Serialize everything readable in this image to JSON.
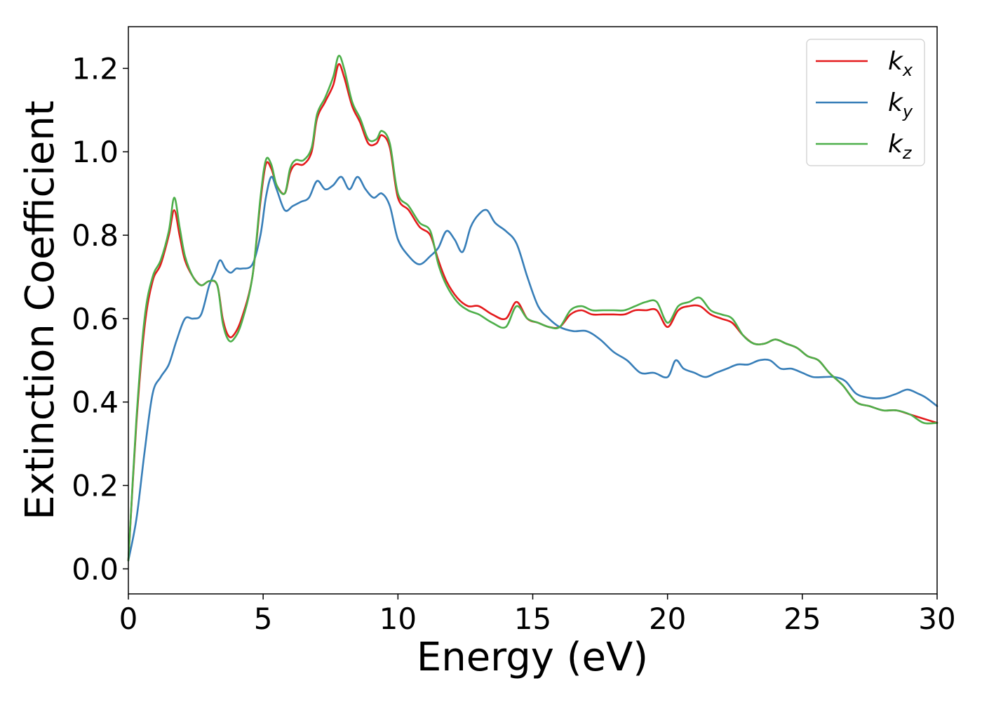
{
  "chart_data": {
    "type": "line",
    "xlabel": "Energy (eV)",
    "ylabel": "Extinction Coefficient",
    "xlim": [
      0,
      30
    ],
    "ylim": [
      -0.06,
      1.3
    ],
    "xticks": [
      "0",
      "5",
      "10",
      "15",
      "20",
      "25",
      "30"
    ],
    "yticks": [
      "0.0",
      "0.2",
      "0.4",
      "0.6",
      "0.8",
      "1.0",
      "1.2"
    ],
    "grid": false,
    "legend_position": "upper right",
    "series": [
      {
        "name": "k",
        "subscript": "x",
        "color": "#e41a1c",
        "x": [
          0,
          0.3,
          0.6,
          0.9,
          1.2,
          1.5,
          1.7,
          1.9,
          2.1,
          2.4,
          2.7,
          3.0,
          3.3,
          3.5,
          3.7,
          3.9,
          4.2,
          4.6,
          4.9,
          5.1,
          5.3,
          5.5,
          5.8,
          6.0,
          6.2,
          6.5,
          6.8,
          7.0,
          7.3,
          7.6,
          7.8,
          8.0,
          8.3,
          8.6,
          8.9,
          9.2,
          9.4,
          9.7,
          10.0,
          10.4,
          10.8,
          11.2,
          11.5,
          11.8,
          12.2,
          12.6,
          13.0,
          13.5,
          14.0,
          14.4,
          14.8,
          15.2,
          15.6,
          16.0,
          16.4,
          16.8,
          17.2,
          17.6,
          18.0,
          18.4,
          18.8,
          19.2,
          19.6,
          20.0,
          20.4,
          20.8,
          21.2,
          21.6,
          22.0,
          22.4,
          22.8,
          23.2,
          23.6,
          24.0,
          24.4,
          24.8,
          25.2,
          25.6,
          26.0,
          26.5,
          27.0,
          27.5,
          28.0,
          28.5,
          29.0,
          29.5,
          30.0
        ],
        "y": [
          0.02,
          0.35,
          0.58,
          0.69,
          0.73,
          0.8,
          0.86,
          0.8,
          0.74,
          0.7,
          0.68,
          0.69,
          0.68,
          0.6,
          0.56,
          0.56,
          0.6,
          0.7,
          0.88,
          0.97,
          0.96,
          0.92,
          0.9,
          0.95,
          0.97,
          0.97,
          1.0,
          1.08,
          1.12,
          1.16,
          1.21,
          1.18,
          1.11,
          1.07,
          1.02,
          1.02,
          1.04,
          1.01,
          0.89,
          0.86,
          0.82,
          0.8,
          0.74,
          0.69,
          0.65,
          0.63,
          0.63,
          0.61,
          0.6,
          0.64,
          0.6,
          0.59,
          0.58,
          0.58,
          0.61,
          0.62,
          0.61,
          0.61,
          0.61,
          0.61,
          0.62,
          0.62,
          0.62,
          0.58,
          0.62,
          0.63,
          0.63,
          0.61,
          0.6,
          0.59,
          0.56,
          0.54,
          0.54,
          0.55,
          0.54,
          0.53,
          0.51,
          0.5,
          0.47,
          0.44,
          0.4,
          0.39,
          0.38,
          0.38,
          0.37,
          0.36,
          0.35
        ]
      },
      {
        "name": "k",
        "subscript": "y",
        "color": "#377eb8",
        "x": [
          0,
          0.3,
          0.6,
          0.9,
          1.2,
          1.5,
          1.8,
          2.1,
          2.4,
          2.7,
          3.0,
          3.2,
          3.4,
          3.6,
          3.8,
          4.0,
          4.2,
          4.6,
          4.9,
          5.1,
          5.3,
          5.5,
          5.8,
          6.1,
          6.4,
          6.7,
          7.0,
          7.3,
          7.6,
          7.9,
          8.2,
          8.5,
          8.8,
          9.1,
          9.4,
          9.7,
          10.0,
          10.4,
          10.8,
          11.2,
          11.5,
          11.8,
          12.1,
          12.4,
          12.7,
          13.0,
          13.3,
          13.6,
          14.0,
          14.4,
          14.8,
          15.2,
          15.6,
          16.0,
          16.5,
          17.0,
          17.5,
          18.0,
          18.5,
          19.0,
          19.5,
          20.0,
          20.3,
          20.6,
          21.0,
          21.4,
          21.8,
          22.2,
          22.6,
          23.0,
          23.4,
          23.8,
          24.2,
          24.6,
          25.0,
          25.4,
          25.8,
          26.2,
          26.6,
          27.0,
          27.5,
          28.0,
          28.5,
          28.9,
          29.3,
          29.6,
          30.0
        ],
        "y": [
          0.02,
          0.12,
          0.28,
          0.42,
          0.46,
          0.49,
          0.55,
          0.6,
          0.6,
          0.61,
          0.68,
          0.71,
          0.74,
          0.72,
          0.71,
          0.72,
          0.72,
          0.73,
          0.8,
          0.89,
          0.94,
          0.91,
          0.86,
          0.87,
          0.88,
          0.89,
          0.93,
          0.91,
          0.92,
          0.94,
          0.91,
          0.94,
          0.91,
          0.89,
          0.9,
          0.87,
          0.79,
          0.75,
          0.73,
          0.75,
          0.77,
          0.81,
          0.79,
          0.76,
          0.82,
          0.85,
          0.86,
          0.83,
          0.81,
          0.78,
          0.7,
          0.63,
          0.6,
          0.58,
          0.57,
          0.57,
          0.55,
          0.52,
          0.5,
          0.47,
          0.47,
          0.46,
          0.5,
          0.48,
          0.47,
          0.46,
          0.47,
          0.48,
          0.49,
          0.49,
          0.5,
          0.5,
          0.48,
          0.48,
          0.47,
          0.46,
          0.46,
          0.46,
          0.45,
          0.42,
          0.41,
          0.41,
          0.42,
          0.43,
          0.42,
          0.41,
          0.39
        ]
      },
      {
        "name": "k",
        "subscript": "z",
        "color": "#4daf4a",
        "x": [
          0,
          0.3,
          0.6,
          0.9,
          1.2,
          1.5,
          1.7,
          1.9,
          2.1,
          2.4,
          2.7,
          3.0,
          3.3,
          3.5,
          3.7,
          3.9,
          4.2,
          4.6,
          4.9,
          5.1,
          5.3,
          5.5,
          5.8,
          6.0,
          6.2,
          6.5,
          6.8,
          7.0,
          7.3,
          7.6,
          7.8,
          8.0,
          8.3,
          8.6,
          8.9,
          9.2,
          9.4,
          9.7,
          10.0,
          10.4,
          10.8,
          11.2,
          11.5,
          11.8,
          12.2,
          12.6,
          13.0,
          13.5,
          14.0,
          14.4,
          14.8,
          15.2,
          15.6,
          16.0,
          16.4,
          16.8,
          17.2,
          17.6,
          18.0,
          18.4,
          18.8,
          19.2,
          19.6,
          20.0,
          20.4,
          20.8,
          21.2,
          21.6,
          22.0,
          22.4,
          22.8,
          23.2,
          23.6,
          24.0,
          24.4,
          24.8,
          25.2,
          25.6,
          26.0,
          26.5,
          27.0,
          27.5,
          28.0,
          28.5,
          29.0,
          29.5,
          30.0
        ],
        "y": [
          0.02,
          0.36,
          0.6,
          0.7,
          0.74,
          0.81,
          0.89,
          0.82,
          0.75,
          0.7,
          0.68,
          0.69,
          0.68,
          0.59,
          0.55,
          0.55,
          0.59,
          0.7,
          0.89,
          0.98,
          0.97,
          0.92,
          0.9,
          0.96,
          0.98,
          0.98,
          1.01,
          1.09,
          1.13,
          1.18,
          1.23,
          1.2,
          1.12,
          1.08,
          1.03,
          1.03,
          1.05,
          1.02,
          0.9,
          0.87,
          0.83,
          0.81,
          0.73,
          0.68,
          0.64,
          0.62,
          0.61,
          0.59,
          0.58,
          0.63,
          0.6,
          0.59,
          0.58,
          0.58,
          0.62,
          0.63,
          0.62,
          0.62,
          0.62,
          0.62,
          0.63,
          0.64,
          0.64,
          0.59,
          0.63,
          0.64,
          0.65,
          0.62,
          0.61,
          0.6,
          0.56,
          0.54,
          0.54,
          0.55,
          0.54,
          0.53,
          0.51,
          0.5,
          0.47,
          0.44,
          0.4,
          0.39,
          0.38,
          0.38,
          0.37,
          0.35,
          0.35
        ]
      }
    ]
  }
}
